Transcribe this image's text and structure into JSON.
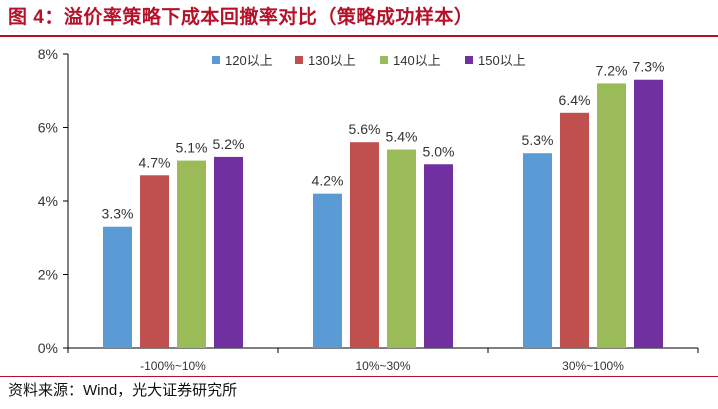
{
  "title": "图 4：溢价率策略下成本回撤率对比（策略成功样本）",
  "source": "资料来源：Wind，光大证券研究所",
  "colors": {
    "accent": "#b5122a",
    "series": [
      "#5b9bd5",
      "#c0504d",
      "#9bbb59",
      "#7030a0"
    ],
    "axis": "#000000",
    "text": "#333333"
  },
  "chart_data": {
    "type": "bar",
    "categories": [
      "-100%~10%",
      "10%~30%",
      "30%~100%"
    ],
    "series": [
      {
        "name": "120以上",
        "values": [
          3.3,
          4.2,
          5.3
        ]
      },
      {
        "name": "130以上",
        "values": [
          4.7,
          5.6,
          6.4
        ]
      },
      {
        "name": "140以上",
        "values": [
          5.1,
          5.4,
          7.2
        ]
      },
      {
        "name": "150以上",
        "values": [
          5.2,
          5.0,
          7.3
        ]
      }
    ],
    "data_labels": [
      [
        "3.3%",
        "4.2%",
        "5.3%"
      ],
      [
        "4.7%",
        "5.6%",
        "6.4%"
      ],
      [
        "5.1%",
        "5.4%",
        "7.2%"
      ],
      [
        "5.2%",
        "5.0%",
        "7.3%"
      ]
    ],
    "yticks": [
      0,
      2,
      4,
      6,
      8
    ],
    "ytick_labels": [
      "0%",
      "2%",
      "4%",
      "6%",
      "8%"
    ],
    "ylim": [
      0,
      8
    ],
    "xlabel": "",
    "ylabel": "",
    "grid": false,
    "legend_position": "top-right"
  }
}
